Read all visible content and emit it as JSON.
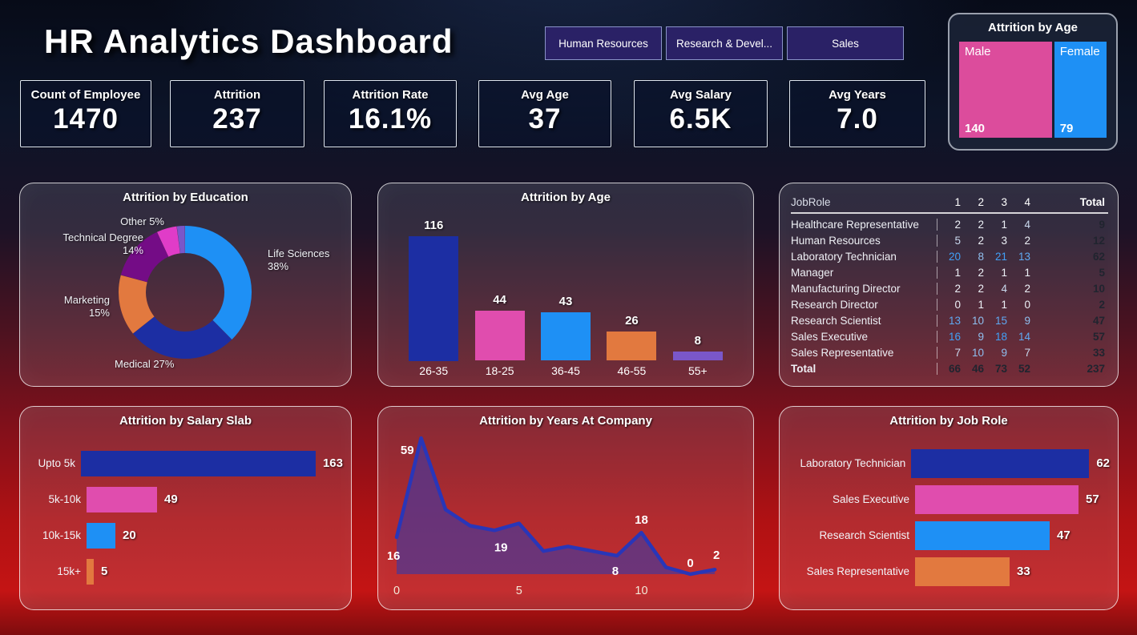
{
  "title": "HR Analytics Dashboard",
  "filters": [
    {
      "label": "Human Resources"
    },
    {
      "label": "Research & Devel..."
    },
    {
      "label": "Sales"
    }
  ],
  "kpis": [
    {
      "label": "Count of Employee",
      "value": "1470"
    },
    {
      "label": "Attrition",
      "value": "237"
    },
    {
      "label": "Attrition Rate",
      "value": "16.1%"
    },
    {
      "label": "Avg Age",
      "value": "37"
    },
    {
      "label": "Avg Salary",
      "value": "6.5K"
    },
    {
      "label": "Avg Years",
      "value": "7.0"
    }
  ],
  "palette": {
    "navy": "#1c2ea3",
    "pink": "#e04dae",
    "blue": "#1e90f5",
    "orange": "#e2793f",
    "violet": "#7a57c9",
    "donut_purple": "#740c86",
    "donut_pink": "#e03cc8",
    "treemap_pink": "#dc4c9c",
    "line_blue": "#2936b8",
    "area_fill": "rgba(80,55,145,0.75)"
  },
  "chart_data": [
    {
      "id": "attrition-by-gender",
      "type": "treemap",
      "title": "Attrition by Age",
      "categories": [
        "Male",
        "Female"
      ],
      "values": [
        140,
        79
      ],
      "colors": [
        "#dc4c9c",
        "#1e90f5"
      ]
    },
    {
      "id": "attrition-by-education",
      "type": "pie",
      "title": "Attrition by Education",
      "categories": [
        "Life Sciences",
        "Medical",
        "Marketing",
        "Technical Degree",
        "Other",
        ""
      ],
      "values": [
        38,
        27,
        15,
        14,
        5,
        2
      ],
      "unit": "%",
      "colors": [
        "#1e90f5",
        "#1c2ea3",
        "#e2793f",
        "#740c86",
        "#e03cc8",
        "#7a57c9"
      ],
      "visible_labels": [
        "Life Sciences 38%",
        "Medical 27%",
        "Marketing 15%",
        "Technical Degree 14%",
        "Other 5%"
      ]
    },
    {
      "id": "attrition-by-age",
      "type": "bar",
      "title": "Attrition by Age",
      "categories": [
        "26-35",
        "18-25",
        "36-45",
        "46-55",
        "55+"
      ],
      "values": [
        116,
        44,
        43,
        26,
        8
      ],
      "colors": [
        "#1c2ea3",
        "#e04dae",
        "#1e90f5",
        "#e2793f",
        "#7a57c9"
      ]
    },
    {
      "id": "attrition-by-jobrole-table",
      "type": "table",
      "columns": [
        "JobRole",
        "1",
        "2",
        "3",
        "4",
        "Total"
      ],
      "rows": [
        [
          "Healthcare Representative",
          2,
          2,
          1,
          4,
          9
        ],
        [
          "Human Resources",
          5,
          2,
          3,
          2,
          12
        ],
        [
          "Laboratory Technician",
          20,
          8,
          21,
          13,
          62
        ],
        [
          "Manager",
          1,
          2,
          1,
          1,
          5
        ],
        [
          "Manufacturing Director",
          2,
          2,
          4,
          2,
          10
        ],
        [
          "Research Director",
          0,
          1,
          1,
          0,
          2
        ],
        [
          "Research Scientist",
          13,
          10,
          15,
          9,
          47
        ],
        [
          "Sales Executive",
          16,
          9,
          18,
          14,
          57
        ],
        [
          "Sales Representative",
          7,
          10,
          9,
          7,
          33
        ]
      ],
      "total_row": [
        "Total",
        66,
        46,
        73,
        52,
        237
      ]
    },
    {
      "id": "attrition-by-salary-slab",
      "type": "bar",
      "title": "Attrition by Salary Slab",
      "orientation": "horizontal",
      "categories": [
        "Upto 5k",
        "5k-10k",
        "10k-15k",
        "15k+"
      ],
      "values": [
        163,
        49,
        20,
        5
      ],
      "colors": [
        "#1c2ea3",
        "#e04dae",
        "#1e90f5",
        "#e2793f"
      ]
    },
    {
      "id": "attrition-by-years-at-company",
      "type": "area",
      "title": "Attrition by Years At Company",
      "x": [
        0,
        1,
        2,
        3,
        4,
        5,
        6,
        7,
        8,
        9,
        10,
        11,
        12,
        13
      ],
      "y": [
        16,
        59,
        28,
        21,
        19,
        22,
        10,
        12,
        10,
        8,
        18,
        3,
        0,
        2
      ],
      "labeled_points": [
        {
          "x": 0,
          "value": 16
        },
        {
          "x": 1,
          "value": 59
        },
        {
          "x": 4,
          "value": 19
        },
        {
          "x": 9,
          "value": 8
        },
        {
          "x": 10,
          "value": 18
        },
        {
          "x": 12,
          "value": 0
        },
        {
          "x": 13,
          "value": 2
        }
      ],
      "x_ticks": [
        "0",
        "5",
        "10"
      ],
      "line_color": "#2936b8",
      "fill_color": "rgba(80,55,145,0.75)"
    },
    {
      "id": "attrition-by-job-role",
      "type": "bar",
      "title": "Attrition by Job Role",
      "orientation": "horizontal",
      "categories": [
        "Laboratory Technician",
        "Sales Executive",
        "Research Scientist",
        "Sales Representative"
      ],
      "values": [
        62,
        57,
        47,
        33
      ],
      "colors": [
        "#1c2ea3",
        "#e04dae",
        "#1e90f5",
        "#e2793f"
      ]
    }
  ]
}
